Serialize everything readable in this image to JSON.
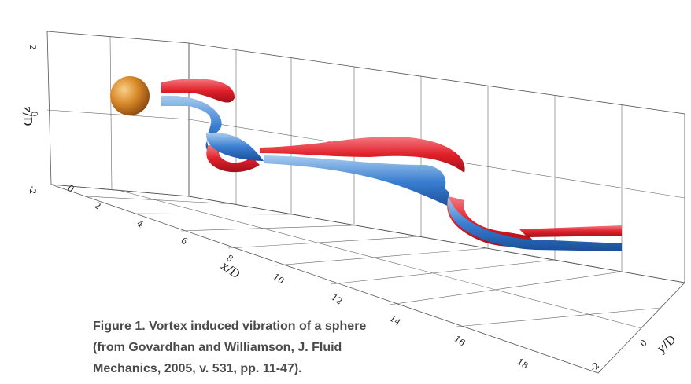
{
  "figure": {
    "axes": {
      "z": {
        "label": "z/D",
        "ticks": [
          "2",
          "0",
          "-2"
        ]
      },
      "x": {
        "label": "x/D",
        "ticks": [
          "0",
          "2",
          "4",
          "6",
          "8",
          "10",
          "12",
          "14",
          "16",
          "18"
        ]
      },
      "y": {
        "label": "y/D",
        "ticks": [
          "0",
          "-2"
        ]
      }
    },
    "caption": [
      "Figure 1. Vortex induced vibration of a sphere",
      "(from Govardhan and Williamson, J. Fluid",
      "Mechanics, 2005, v. 531, pp. 11-47)."
    ]
  }
}
